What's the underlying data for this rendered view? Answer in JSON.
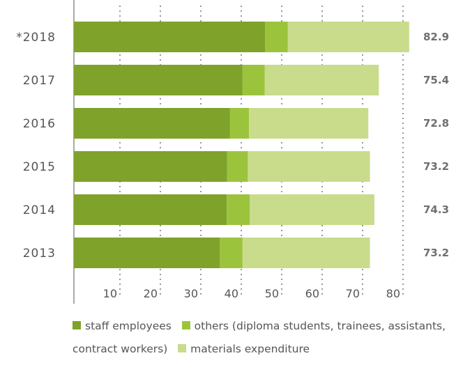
{
  "chart_data": {
    "type": "bar",
    "orientation": "horizontal",
    "stacked": true,
    "categories": [
      "*2018",
      "2017",
      "2016",
      "2015",
      "2014",
      "2013"
    ],
    "series": [
      {
        "name": "staff employees",
        "color": "#7ea22a",
        "values": [
          47.3,
          41.7,
          38.6,
          37.9,
          37.8,
          36.1
        ]
      },
      {
        "name": "others (diploma students, trainees, assistants, contract workers)",
        "color": "#9bc43c",
        "values": [
          5.6,
          5.5,
          4.7,
          5.1,
          5.7,
          5.6
        ]
      },
      {
        "name": "materials expenditure",
        "color": "#c8dc8c",
        "values": [
          30.0,
          28.2,
          29.5,
          30.2,
          30.8,
          31.5
        ]
      }
    ],
    "totals": [
      "82.9",
      "75.4",
      "72.8",
      "73.2",
      "74.3",
      "73.2"
    ],
    "x_ticks": [
      "10",
      "20",
      "30",
      "40",
      "50",
      "60",
      "70",
      "80"
    ],
    "xlim": [
      0,
      83
    ],
    "grid": "vertical dotted",
    "legend_position": "bottom"
  },
  "legend": {
    "staff": "staff employees",
    "others": "others (diploma students, trainees, assistants, contract workers)",
    "materials": "materials expenditure"
  }
}
